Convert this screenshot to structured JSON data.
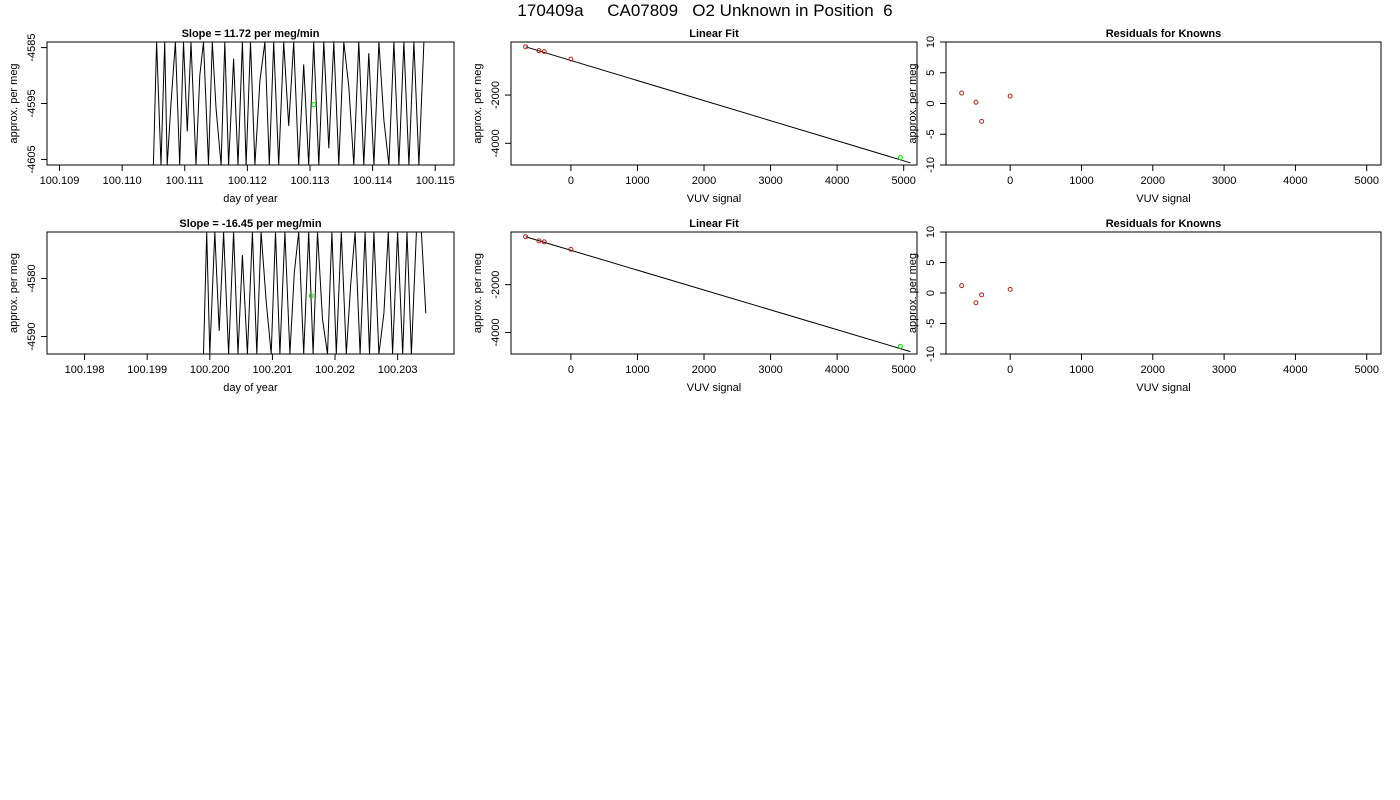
{
  "title": "170409a     CA07809   O2 Unknown in Position  6",
  "colors": {
    "line": "#000000",
    "known_points": "#b22222",
    "unknown_point": "#00dd00",
    "axis": "#000000"
  },
  "chart_data": [
    {
      "type": "line",
      "title": "Slope =  11.72  per meg/min",
      "xlabel": "day of year",
      "ylabel": "approx. per meg",
      "xlim": [
        100.1088,
        100.1153
      ],
      "ylim": [
        -4606,
        -4584
      ],
      "xticks": [
        "100.109",
        "100.110",
        "100.111",
        "100.112",
        "100.113",
        "100.114",
        "100.115"
      ],
      "yticks": [
        "-4585",
        "-4595",
        "-4605"
      ],
      "series": [
        {
          "x": [
            100.1105,
            100.11055,
            100.11062,
            100.11068,
            100.11072,
            100.11078,
            100.11085,
            100.11092,
            100.11098,
            100.11104,
            100.1111,
            100.11118,
            100.11124,
            100.1113,
            100.11138,
            100.11144,
            100.1115,
            100.11158,
            100.11164,
            100.1117,
            100.11178,
            100.11185,
            100.11192,
            100.11198,
            100.11205,
            100.11212,
            100.1122,
            100.11228,
            100.11235,
            100.11242,
            100.1125,
            100.11258,
            100.11266,
            100.11274,
            100.11282,
            100.1129,
            100.11298,
            100.11306,
            100.11314,
            100.11322,
            100.1133,
            100.11338,
            100.11346,
            100.11354,
            100.11362,
            100.1137,
            100.11378,
            100.11386,
            100.11394,
            100.11402,
            100.1141,
            100.11418,
            100.11426,
            100.11434,
            100.11442,
            100.1145,
            100.11458,
            100.11466,
            100.11474,
            100.11482
          ],
          "y": [
            -4606,
            -4584,
            -4606,
            -4584,
            -4606,
            -4595,
            -4584,
            -4606,
            -4584,
            -4600,
            -4584,
            -4606,
            -4590,
            -4584,
            -4606,
            -4584,
            -4596,
            -4606,
            -4584,
            -4606,
            -4587,
            -4606,
            -4584,
            -4606,
            -4584,
            -4606,
            -4591,
            -4584,
            -4606,
            -4584,
            -4606,
            -4584,
            -4599,
            -4584,
            -4606,
            -4588,
            -4606,
            -4584,
            -4606,
            -4584,
            -4603,
            -4584,
            -4606,
            -4584,
            -4592,
            -4606,
            -4584,
            -4606,
            -4586,
            -4606,
            -4584,
            -4598,
            -4606,
            -4584,
            -4606,
            -4584,
            -4606,
            -4584,
            -4606,
            -4584
          ]
        }
      ],
      "unknown_point": {
        "x": 100.11306,
        "y": -4595.2
      }
    },
    {
      "type": "scatter",
      "title": "Linear Fit",
      "xlabel": "VUV signal",
      "ylabel": "approx. per meg",
      "xlim": [
        -900,
        5200
      ],
      "ylim": [
        -4900,
        200
      ],
      "xticks": [
        "0",
        "1000",
        "2000",
        "3000",
        "4000",
        "5000"
      ],
      "yticks": [
        "-2000",
        "-4000"
      ],
      "known_points": {
        "x": [
          -680,
          -480,
          -400,
          0
        ],
        "y": [
          0,
          -160,
          -200,
          -510
        ]
      },
      "unknown_point": {
        "x": 4950,
        "y": -4595
      },
      "fit_line": {
        "x": [
          -680,
          5100
        ],
        "y": [
          0,
          -4810
        ]
      }
    },
    {
      "type": "scatter",
      "title": "Residuals for Knowns",
      "xlabel": "VUV signal",
      "ylabel": "approx. per meg",
      "xlim": [
        -900,
        5200
      ],
      "ylim": [
        -10,
        10
      ],
      "xticks": [
        "0",
        "1000",
        "2000",
        "3000",
        "4000",
        "5000"
      ],
      "yticks": [
        "10",
        "5",
        "0",
        "-5",
        "-10"
      ],
      "known_points": {
        "x": [
          -680,
          -480,
          -400,
          0
        ],
        "y": [
          1.7,
          0.2,
          -2.9,
          1.2
        ]
      }
    },
    {
      "type": "line",
      "title": "Slope =  -16.45  per meg/min",
      "xlabel": "day of year",
      "ylabel": "approx. per meg",
      "xlim": [
        100.1974,
        100.2039
      ],
      "ylim": [
        -4593,
        -4572
      ],
      "xticks": [
        "100.198",
        "100.199",
        "100.200",
        "100.201",
        "100.202",
        "100.203"
      ],
      "yticks": [
        "-4580",
        "-4590"
      ],
      "series": [
        {
          "x": [
            100.1988,
            100.1999,
            100.19995,
            100.2,
            100.20008,
            100.20015,
            100.20022,
            100.2003,
            100.20038,
            100.20045,
            100.20052,
            100.2006,
            100.20068,
            100.20075,
            100.20082,
            100.2009,
            100.20098,
            100.20105,
            100.20112,
            100.2012,
            100.20128,
            100.20135,
            100.20142,
            100.2015,
            100.20158,
            100.20165,
            100.20172,
            100.2018,
            100.20188,
            100.20195,
            100.20202,
            100.2021,
            100.20218,
            100.20225,
            100.20232,
            100.2024,
            100.20248,
            100.20255,
            100.20262,
            100.2027,
            100.20278,
            100.20285,
            100.20292,
            100.203,
            100.20308,
            100.20315,
            100.20322,
            100.2033,
            100.20338,
            100.20345
          ],
          "y": [
            -4593,
            -4593,
            -4572,
            -4593,
            -4572,
            -4589,
            -4572,
            -4593,
            -4572,
            -4593,
            -4576,
            -4593,
            -4572,
            -4593,
            -4572,
            -4584,
            -4593,
            -4572,
            -4593,
            -4572,
            -4593,
            -4579,
            -4572,
            -4593,
            -4572,
            -4593,
            -4572,
            -4587,
            -4593,
            -4572,
            -4593,
            -4572,
            -4593,
            -4581,
            -4572,
            -4593,
            -4572,
            -4593,
            -4572,
            -4593,
            -4586,
            -4572,
            -4593,
            -4572,
            -4593,
            -4572,
            -4593,
            -4572,
            -4572,
            -4586
          ]
        }
      ],
      "unknown_point": {
        "x": 100.20162,
        "y": -4583
      }
    },
    {
      "type": "scatter",
      "title": "Linear Fit",
      "xlabel": "VUV signal",
      "ylabel": "approx. per meg",
      "xlim": [
        -900,
        5200
      ],
      "ylim": [
        -4900,
        200
      ],
      "xticks": [
        "0",
        "1000",
        "2000",
        "3000",
        "4000",
        "5000"
      ],
      "yticks": [
        "-2000",
        "-4000"
      ],
      "known_points": {
        "x": [
          -680,
          -480,
          -400,
          0
        ],
        "y": [
          0,
          -170,
          -215,
          -520
        ]
      },
      "unknown_point": {
        "x": 4950,
        "y": -4583
      },
      "fit_line": {
        "x": [
          -680,
          5100
        ],
        "y": [
          0,
          -4800
        ]
      }
    },
    {
      "type": "scatter",
      "title": "Residuals for Knowns",
      "xlabel": "VUV signal",
      "ylabel": "approx. per meg",
      "xlim": [
        -900,
        5200
      ],
      "ylim": [
        -10,
        10
      ],
      "xticks": [
        "0",
        "1000",
        "2000",
        "3000",
        "4000",
        "5000"
      ],
      "yticks": [
        "10",
        "5",
        "0",
        "-5",
        "-10"
      ],
      "known_points": {
        "x": [
          -680,
          -480,
          -400,
          0
        ],
        "y": [
          1.2,
          -1.6,
          -0.3,
          0.6
        ]
      }
    }
  ]
}
